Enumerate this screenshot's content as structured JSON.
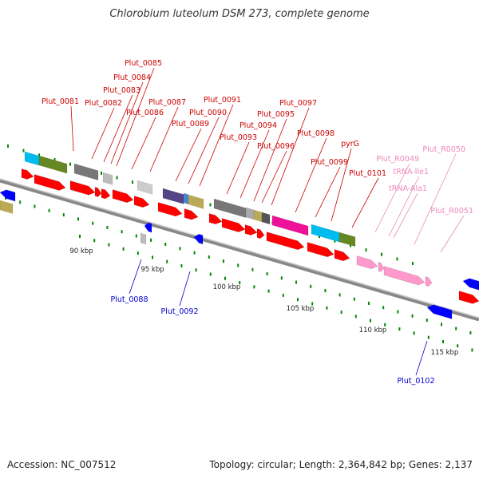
{
  "title": "Chlorobium luteolum DSM 273, complete genome",
  "footer": {
    "accession": "Accession: NC_007512",
    "summary": "Topology: circular; Length: 2,364,842 bp; Genes: 2,137"
  },
  "colors": {
    "gene_red": "#ff0000",
    "gene_blue": "#0000ff",
    "rna_pink": "#ff99cc",
    "label_red": "#cc0000",
    "label_blue": "#0000cc",
    "label_pink": "#ee88bb",
    "tick_green": "#008800",
    "backbone": "#808080"
  },
  "ticks": [
    "90 kbp",
    "95 kbp",
    "100 kbp",
    "105 kbp",
    "110 kbp",
    "115 kbp"
  ],
  "labels": {
    "top_red": [
      "Plut_0081",
      "Plut_0082",
      "Plut_0083",
      "Plut_0084",
      "Plut_0085",
      "Plut_0086",
      "Plut_0087",
      "Plut_0089",
      "Plut_0090",
      "Plut_0091",
      "Plut_0093",
      "Plut_0094",
      "Plut_0095",
      "Plut_0096",
      "Plut_0097",
      "Plut_0098",
      "Plut_0099",
      "pyrG",
      "Plut_0101"
    ],
    "top_pink": [
      "Plut_R0049",
      "tRNA-Ile1",
      "tRNA-Ala1",
      "Plut_R0050",
      "Plut_R0051"
    ],
    "bottom_blue": [
      "Plut_0088",
      "Plut_0092",
      "Plut_0102"
    ]
  }
}
